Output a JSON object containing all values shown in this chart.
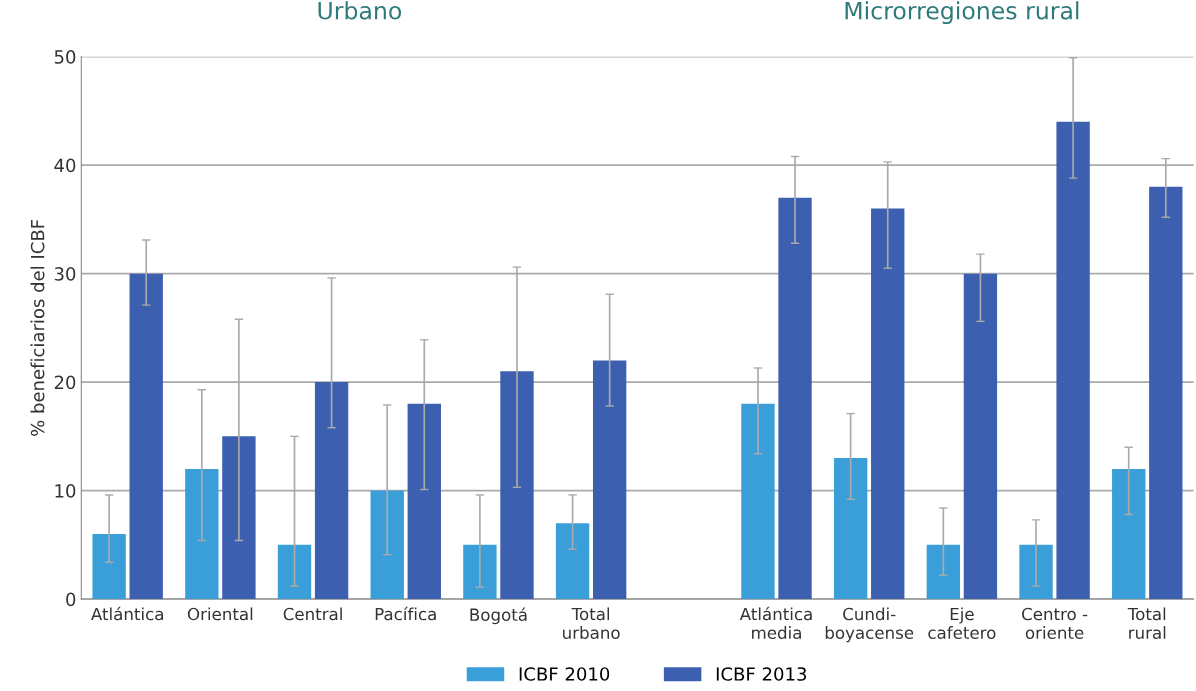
{
  "chart_data": {
    "type": "bar",
    "categories": [
      "Atlántica",
      "Oriental",
      "Central",
      "Pacífica",
      "Bogotá",
      "Total\nurbano",
      null,
      "Atlántica\nmedia",
      "Cundi-\nboyacense",
      "Eje\ncafetero",
      "Centro -\noriente",
      "Total\nrural"
    ],
    "series": [
      {
        "name": "ICBF 2010",
        "color": "#3a9fd8",
        "values": [
          6,
          12,
          5,
          10,
          5,
          7,
          null,
          18,
          13,
          5,
          5,
          12
        ],
        "errors": [
          [
            3.4,
            9.6
          ],
          [
            5.4,
            19.3
          ],
          [
            1.2,
            15
          ],
          [
            4.1,
            17.9
          ],
          [
            1.1,
            9.6
          ],
          [
            4.6,
            9.6
          ],
          null,
          [
            13.4,
            21.3
          ],
          [
            9.2,
            17.1
          ],
          [
            2.2,
            8.4
          ],
          [
            1.2,
            7.3
          ],
          [
            7.8,
            14.0
          ]
        ]
      },
      {
        "name": "ICBF 2013",
        "color": "#3d5fb0",
        "values": [
          30,
          15,
          20,
          18,
          21,
          22,
          null,
          37,
          36,
          30,
          44,
          38
        ],
        "errors": [
          [
            27.1,
            33.1
          ],
          [
            5.4,
            25.8
          ],
          [
            15.8,
            29.6
          ],
          [
            10.1,
            23.9
          ],
          [
            10.3,
            30.6
          ],
          [
            17.8,
            28.1
          ],
          null,
          [
            32.8,
            40.8
          ],
          [
            30.5,
            40.3
          ],
          [
            25.6,
            31.8
          ],
          [
            38.8,
            49.9
          ],
          [
            35.2,
            40.6
          ]
        ]
      }
    ],
    "ylabel": "% beneficiarios del ICBF",
    "ylim": [
      0,
      50
    ],
    "yticks": [
      0,
      10,
      20,
      30,
      40,
      50
    ],
    "grid": "y",
    "legend": "bottom",
    "annotations": [
      "Urbano",
      "Microrregiones rural"
    ]
  }
}
